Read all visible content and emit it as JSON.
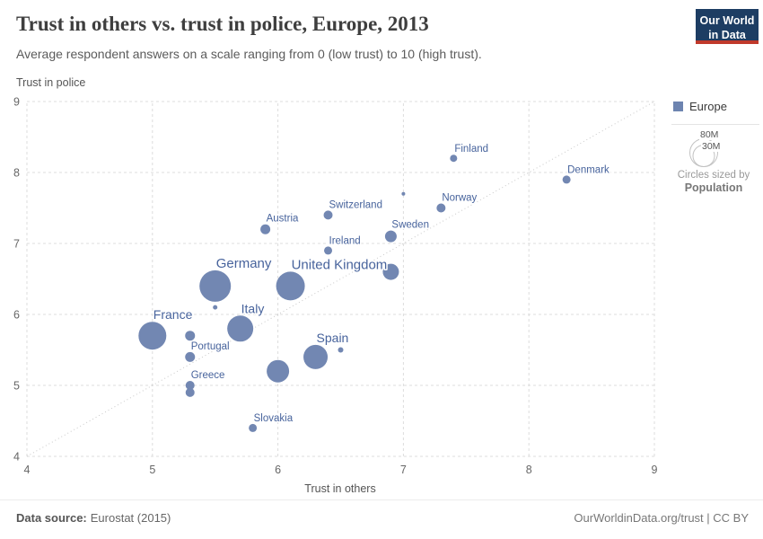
{
  "header": {
    "title": "Trust in others vs. trust in police, Europe, 2013",
    "subtitle": "Average respondent answers on a scale ranging from 0 (low trust) to 10 (high trust)."
  },
  "logo": {
    "line1": "Our World",
    "line2": "in Data"
  },
  "chart_data": {
    "type": "scatter",
    "title": "Trust in others vs. trust in police, Europe, 2013",
    "xlabel": "Trust in others",
    "ylabel": "Trust in police",
    "xlim": [
      4,
      9
    ],
    "ylim": [
      4,
      9
    ],
    "x_ticks": [
      4,
      5,
      6,
      7,
      8,
      9
    ],
    "y_ticks": [
      4,
      5,
      6,
      7,
      8,
      9
    ],
    "grid": "dashed",
    "diagonal_reference_line": true,
    "series_name": "Europe",
    "size_by": "Population",
    "points": [
      {
        "label": "Finland",
        "x": 7.4,
        "y": 8.2,
        "r": 4
      },
      {
        "label": "Denmark",
        "x": 8.3,
        "y": 7.9,
        "r": 4.5
      },
      {
        "label": "Norway",
        "x": 7.3,
        "y": 7.5,
        "r": 5
      },
      {
        "label": "Switzerland",
        "x": 6.4,
        "y": 7.4,
        "r": 5
      },
      {
        "label": "Sweden",
        "x": 6.9,
        "y": 7.1,
        "r": 6.5
      },
      {
        "label": "Austria",
        "x": 5.9,
        "y": 7.2,
        "r": 5.5
      },
      {
        "label": "Ireland",
        "x": 6.4,
        "y": 6.9,
        "r": 4.5
      },
      {
        "label": "Germany",
        "x": 5.5,
        "y": 6.4,
        "r": 17.5
      },
      {
        "label": "United Kingdom",
        "x": 6.1,
        "y": 6.4,
        "r": 16
      },
      {
        "label": "Italy",
        "x": 5.7,
        "y": 5.8,
        "r": 14.5
      },
      {
        "label": "France",
        "x": 5.0,
        "y": 5.7,
        "r": 15.5
      },
      {
        "label": "Spain",
        "x": 6.3,
        "y": 5.4,
        "r": 13.5
      },
      {
        "label": "Portugal",
        "x": 5.3,
        "y": 5.4,
        "r": 5.5
      },
      {
        "label": "Greece",
        "x": 5.3,
        "y": 5.0,
        "r": 5
      },
      {
        "label": "Slovakia",
        "x": 5.8,
        "y": 4.4,
        "r": 4.5
      },
      {
        "label": "",
        "x": 7.0,
        "y": 7.7,
        "r": 2
      },
      {
        "label": "",
        "x": 6.9,
        "y": 6.6,
        "r": 9
      },
      {
        "label": "",
        "x": 5.5,
        "y": 6.1,
        "r": 2.5
      },
      {
        "label": "",
        "x": 5.3,
        "y": 5.7,
        "r": 5.5
      },
      {
        "label": "",
        "x": 5.3,
        "y": 4.9,
        "r": 5
      },
      {
        "label": "",
        "x": 6.0,
        "y": 5.2,
        "r": 12.5
      },
      {
        "label": "",
        "x": 6.5,
        "y": 5.5,
        "r": 3
      }
    ]
  },
  "legend": {
    "series_label": "Europe",
    "size_large": "80M",
    "size_small": "30M",
    "caption_line1": "Circles sized by",
    "caption_line2": "Population"
  },
  "footer": {
    "source_label": "Data source:",
    "source_value": "Eurostat (2015)",
    "link": "OurWorldinData.org/trust | CC BY"
  },
  "colors": {
    "bubble": "#7287b2",
    "bubble_label": "#47639c",
    "grid": "#dddddd",
    "diagonal": "#c9c9c9",
    "tick_text": "#666666",
    "axis_title": "#555555",
    "logo_navy": "#1d3d63",
    "logo_red": "#c0392b"
  }
}
